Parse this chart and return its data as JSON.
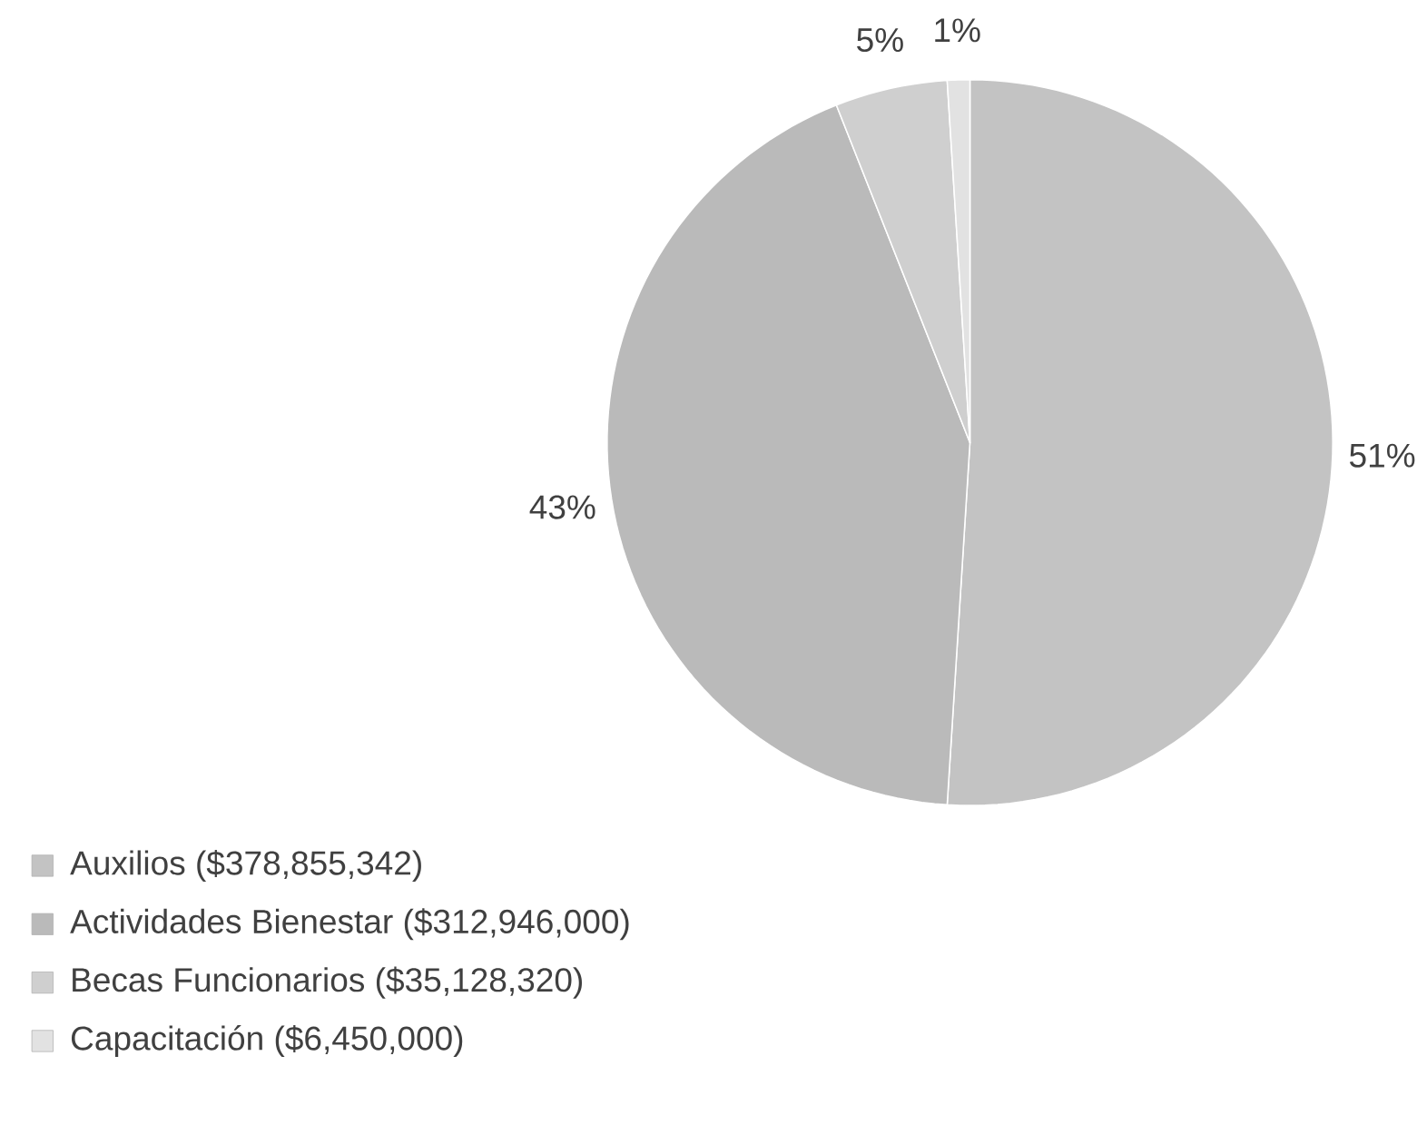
{
  "chart_data": {
    "type": "pie",
    "categories": [
      "Auxilios ($378,855,342)",
      "Actividades  Bienestar ($312,946,000)",
      "Becas Funcionarios ($35,128,320)",
      "Capacitación ($6,450,000)"
    ],
    "values": [
      51,
      43,
      5,
      1
    ],
    "colors": [
      "#c3c3c3",
      "#bababa",
      "#cfcfcf",
      "#e2e2e2"
    ],
    "value_labels": [
      "51%",
      "43%",
      "5%",
      "1%"
    ],
    "legend": "bottom left"
  }
}
